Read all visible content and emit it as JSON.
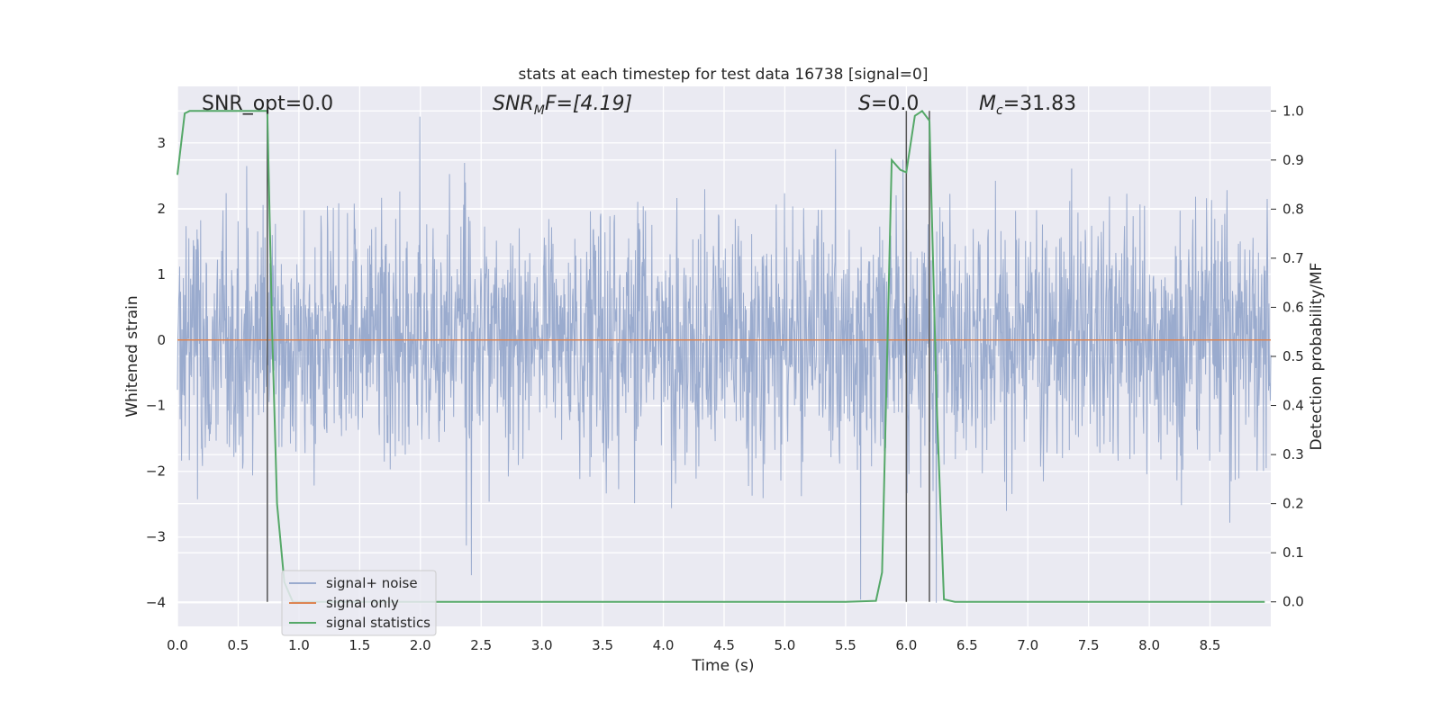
{
  "chart_data": {
    "type": "line",
    "title": "stats at each timestep for test data 16738 [signal=0]",
    "xlabel": "Time (s)",
    "ylabel": "Whitened strain",
    "y2label": "Detection probability/MF",
    "xlim": [
      0.0,
      9.0
    ],
    "ylim": [
      -4.36,
      3.86
    ],
    "y2lim": [
      -0.05,
      1.05
    ],
    "xticks": [
      "0.0",
      "0.5",
      "1.0",
      "1.5",
      "2.0",
      "2.5",
      "3.0",
      "3.5",
      "4.0",
      "4.5",
      "5.0",
      "5.5",
      "6.0",
      "6.5",
      "7.0",
      "7.5",
      "8.0",
      "8.5"
    ],
    "yticks": [
      "3",
      "2",
      "1",
      "0",
      "−1",
      "−2",
      "−3",
      "−4"
    ],
    "y2ticks": [
      "1.0",
      "0.9",
      "0.8",
      "0.7",
      "0.6",
      "0.5",
      "0.4",
      "0.3",
      "0.2",
      "0.1",
      "0.0"
    ],
    "grid": true,
    "legend_position": "lower-left",
    "annotations": {
      "snr_opt": "SNR_opt=0.0",
      "snr_mf_sym": "SNR",
      "snr_mf_sub": "M",
      "snr_mf_rest": "F=[4.19]",
      "s_sym": "S",
      "s_rest": "=0.0",
      "mc_sym": "M",
      "mc_sub": "c",
      "mc_rest": "=31.83"
    },
    "vertical_lines_x": [
      0.74,
      6.0,
      6.19
    ],
    "series": [
      {
        "name": "signal+ noise",
        "color": "#9aabce",
        "note_values": "dense noise trace, approx. range -4 to 3.4",
        "seed": 16738
      },
      {
        "name": "signal only",
        "color": "#dd8452",
        "x": [
          0.0,
          9.0
        ],
        "y": [
          0.0,
          0.0
        ]
      },
      {
        "name": "signal statistics",
        "color": "#55a868",
        "axis": "right",
        "x": [
          0.0,
          0.06,
          0.1,
          0.2,
          0.3,
          0.4,
          0.5,
          0.6,
          0.7,
          0.74,
          0.78,
          0.82,
          0.88,
          0.95,
          1.0,
          2.0,
          3.0,
          4.0,
          5.0,
          5.5,
          5.75,
          5.8,
          5.88,
          5.95,
          6.0,
          6.07,
          6.13,
          6.19,
          6.25,
          6.31,
          6.4,
          7.0,
          8.0,
          8.95
        ],
        "y": [
          0.87,
          0.995,
          1.0,
          1.0,
          1.0,
          1.0,
          1.0,
          1.0,
          1.0,
          1.0,
          0.55,
          0.2,
          0.04,
          0.0,
          0.0,
          0.0,
          0.0,
          0.0,
          0.0,
          0.0,
          0.002,
          0.06,
          0.9,
          0.88,
          0.875,
          0.99,
          1.0,
          0.98,
          0.4,
          0.005,
          0.0,
          0.0,
          0.0,
          0.0
        ]
      }
    ]
  }
}
